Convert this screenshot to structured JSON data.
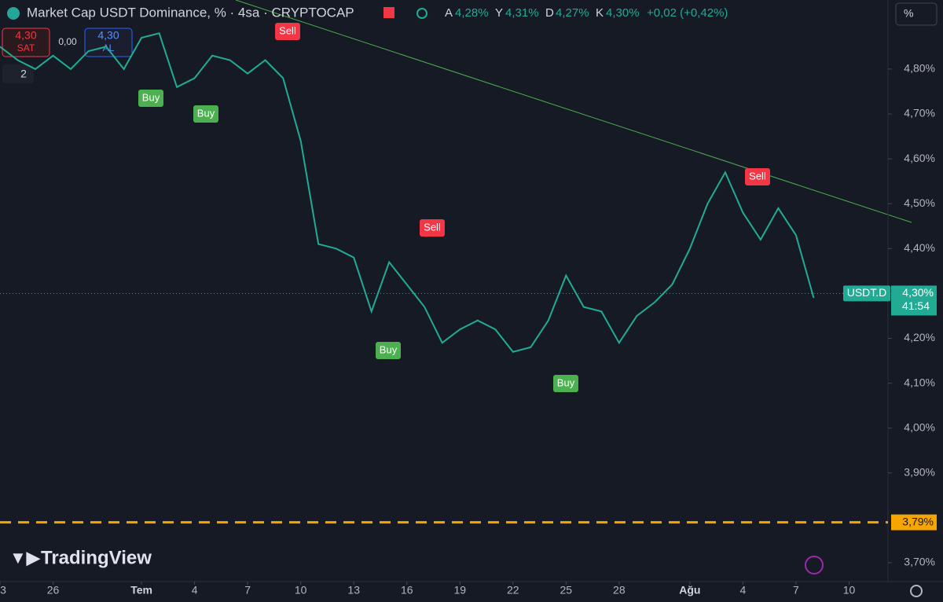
{
  "chart_data": {
    "type": "line",
    "title": "Market Cap USDT Dominance, % · 4sa · CRYPTOCAP",
    "ohlc": [
      {
        "label": "A",
        "text": "4,28%"
      },
      {
        "label": "Y",
        "text": "4,31%"
      },
      {
        "label": "D",
        "text": "4,27%"
      },
      {
        "label": "K",
        "text": "4,30%"
      }
    ],
    "change": "+0,02 (+0,42%)",
    "sell_box": {
      "price": "4,30",
      "label": "SAT"
    },
    "spread": "0,00",
    "buy_box": {
      "price": "4,30",
      "label": "AL"
    },
    "indicator_count": "2",
    "scale_button": "%",
    "brand": "TradingView",
    "x": [
      0,
      1,
      2,
      3,
      4,
      5,
      6,
      7,
      8,
      9,
      10,
      11,
      12,
      13,
      14,
      15,
      16,
      17,
      18,
      19,
      20,
      21,
      22,
      23,
      24,
      25,
      26,
      27,
      28,
      29,
      30,
      31,
      32,
      33,
      34,
      35,
      36,
      37,
      38,
      39,
      40,
      41,
      42,
      43,
      44,
      45,
      46
    ],
    "series": [
      {
        "name": "USDT.D",
        "color": "#22ab94",
        "values": [
          4.85,
          4.82,
          4.8,
          4.83,
          4.8,
          4.84,
          4.85,
          4.8,
          4.87,
          4.88,
          4.76,
          4.78,
          4.83,
          4.82,
          4.79,
          4.82,
          4.78,
          4.64,
          4.41,
          4.4,
          4.38,
          4.26,
          4.37,
          4.32,
          4.27,
          4.19,
          4.22,
          4.24,
          4.22,
          4.17,
          4.18,
          4.24,
          4.34,
          4.27,
          4.26,
          4.19,
          4.25,
          4.28,
          4.32,
          4.4,
          4.5,
          4.57,
          4.48,
          4.42,
          4.49,
          4.43,
          4.29
        ]
      }
    ],
    "xlim": [
      0,
      50.2
    ],
    "xticks": [
      {
        "value": 0,
        "label": "3"
      },
      {
        "value": 3,
        "label": "26"
      },
      {
        "value": 8,
        "label": "Tem"
      },
      {
        "value": 11,
        "label": "4"
      },
      {
        "value": 14,
        "label": "7"
      },
      {
        "value": 17,
        "label": "10"
      },
      {
        "value": 20,
        "label": "13"
      },
      {
        "value": 23,
        "label": "16"
      },
      {
        "value": 26,
        "label": "19"
      },
      {
        "value": 29,
        "label": "22"
      },
      {
        "value": 32,
        "label": "25"
      },
      {
        "value": 35,
        "label": "28"
      },
      {
        "value": 39,
        "label": "Ağu"
      },
      {
        "value": 42,
        "label": "4"
      },
      {
        "value": 45,
        "label": "7"
      },
      {
        "value": 48,
        "label": "10"
      }
    ],
    "ylim": [
      3.658,
      4.954
    ],
    "yticks": [
      {
        "value": 4.8,
        "label": "4,80%"
      },
      {
        "value": 4.7,
        "label": "4,70%"
      },
      {
        "value": 4.6,
        "label": "4,60%"
      },
      {
        "value": 4.5,
        "label": "4,50%"
      },
      {
        "value": 4.4,
        "label": "4,40%"
      },
      {
        "value": 4.3,
        "label": "4,30%"
      },
      {
        "value": 4.2,
        "label": "4,20%"
      },
      {
        "value": 4.1,
        "label": "4,10%"
      },
      {
        "value": 4.0,
        "label": "4,00%"
      },
      {
        "value": 3.9,
        "label": "3,90%"
      },
      {
        "value": 3.7,
        "label": "3,70%"
      }
    ],
    "grid": false,
    "last_price": {
      "value": 4.3,
      "label": "4,30%",
      "name": "USDT.D",
      "countdown": "41:54"
    },
    "price_line": {
      "value": 3.79,
      "label": "3,79%",
      "color": "#f7a600"
    },
    "signals": [
      {
        "text": "Buy"
      },
      {
        "text": "Buy"
      },
      {
        "text": "Sell"
      },
      {
        "text": "Buy"
      },
      {
        "text": "Sell"
      },
      {
        "text": "Buy"
      },
      {
        "text": "Sell"
      }
    ]
  }
}
